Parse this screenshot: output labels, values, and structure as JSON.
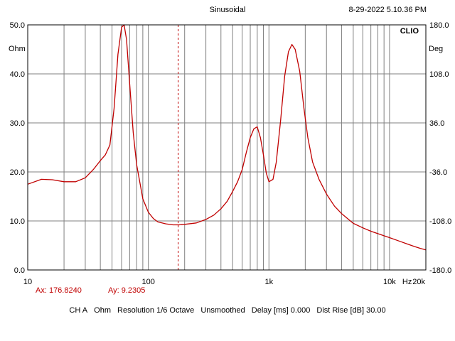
{
  "header": {
    "title": "Sinusoidal",
    "datetime": "8-29-2022 5.10.36 PM",
    "brand": "CLIO"
  },
  "cursor": {
    "ax_label": "Ax: 176.8240",
    "ay_label": "Ay: 9.2305"
  },
  "info_bar": {
    "channel": "CH A",
    "unit": "Ohm",
    "resolution": "Resolution 1/6 Octave",
    "smoothing": "Unsmoothed",
    "delay": "Delay [ms] 0.000",
    "dist_rise": "Dist Rise [dB] 30.00"
  },
  "colors": {
    "curve": "#c00000",
    "grid": "#808080",
    "background": "#ffffff"
  },
  "chart_data": {
    "type": "line",
    "x_scale": "log",
    "xlim": [
      10,
      20000
    ],
    "ylim": [
      0,
      50
    ],
    "y2lim": [
      -180,
      180
    ],
    "ylabel": "Ohm",
    "y2label": "Deg",
    "grid": true,
    "x_ticks": [
      {
        "value": 10,
        "label": "10"
      },
      {
        "value": 100,
        "label": "100"
      },
      {
        "value": 1000,
        "label": "1k"
      },
      {
        "value": 10000,
        "label": "10k"
      },
      {
        "value": 20000,
        "label": "20k"
      }
    ],
    "x_unit_label": "Hz",
    "y_ticks": [
      "0.0",
      "10.0",
      "20.0",
      "30.0",
      "40.0",
      "50.0"
    ],
    "y_tick_values": [
      0,
      10,
      20,
      30,
      40,
      50
    ],
    "y2_ticks": [
      "-180.0",
      "-108.0",
      "-36.0",
      "36.0",
      "108.0",
      "180.0"
    ],
    "cursor_x": 176.824,
    "series": [
      {
        "x": [
          10,
          13,
          16,
          20,
          25,
          30,
          35,
          40,
          44,
          48,
          52,
          56,
          60,
          63,
          66,
          70,
          75,
          80,
          90,
          100,
          110,
          120,
          140,
          160,
          180,
          200,
          250,
          300,
          350,
          400,
          450,
          500,
          550,
          600,
          650,
          700,
          750,
          800,
          850,
          900,
          950,
          1000,
          1080,
          1150,
          1250,
          1350,
          1450,
          1550,
          1650,
          1750,
          1800,
          1850,
          1950,
          2100,
          2300,
          2600,
          3000,
          3500,
          4000,
          5000,
          6000,
          7000,
          8000,
          10000,
          12000,
          14000,
          16000,
          18000,
          20000
        ],
        "y": [
          17.5,
          18.5,
          18.4,
          18.0,
          18.0,
          18.8,
          20.5,
          22.3,
          23.5,
          25.5,
          33.0,
          44.0,
          49.5,
          50.0,
          47.0,
          38.0,
          28.0,
          21.5,
          14.5,
          11.8,
          10.5,
          9.8,
          9.4,
          9.2,
          9.2,
          9.3,
          9.6,
          10.3,
          11.2,
          12.5,
          14.0,
          16.0,
          18.0,
          20.5,
          24.0,
          27.0,
          28.8,
          29.2,
          27.0,
          23.5,
          19.8,
          18.0,
          18.5,
          22.0,
          30.5,
          39.5,
          44.5,
          46.0,
          45.0,
          42.0,
          40.5,
          38.0,
          33.0,
          27.0,
          22.0,
          18.5,
          15.5,
          13.0,
          11.5,
          9.5,
          8.6,
          7.9,
          7.4,
          6.6,
          5.9,
          5.3,
          4.8,
          4.4,
          4.1
        ]
      }
    ]
  }
}
